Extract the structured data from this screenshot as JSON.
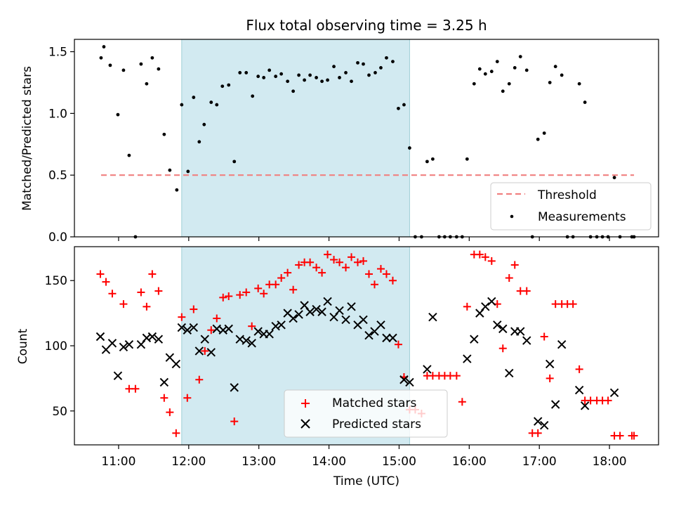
{
  "title": "Flux total observing time = 3.25 h",
  "colors": {
    "threshold": "#f08080",
    "matched": "#ff0000",
    "predicted": "#000000",
    "span": "#add8e6"
  },
  "x_ticks": [
    "11:00",
    "12:00",
    "13:00",
    "14:00",
    "15:00",
    "16:00",
    "17:00",
    "18:00"
  ],
  "chart_data": [
    {
      "type": "scatter",
      "panel": "top",
      "ylabel": "Matched/Predicted stars",
      "x_unit": "hours UTC",
      "xlim": [
        10.37,
        18.7
      ],
      "ylim": [
        0,
        1.6
      ],
      "y_ticks": [
        "0.0",
        "0.5",
        "1.0",
        "1.5"
      ],
      "highlight_span": [
        11.9,
        15.15
      ],
      "threshold": {
        "name": "Threshold",
        "value": 0.5,
        "x_range": [
          10.75,
          18.35
        ]
      },
      "series": [
        {
          "name": "Measurements",
          "x": [
            10.75,
            10.79,
            10.88,
            10.99,
            11.07,
            11.15,
            11.24,
            11.32,
            11.4,
            11.48,
            11.57,
            11.65,
            11.73,
            11.83,
            11.9,
            11.99,
            12.07,
            12.15,
            12.22,
            12.32,
            12.4,
            12.48,
            12.57,
            12.65,
            12.73,
            12.82,
            12.91,
            12.99,
            13.07,
            13.15,
            13.24,
            13.32,
            13.41,
            13.49,
            13.57,
            13.65,
            13.73,
            13.82,
            13.9,
            13.98,
            14.07,
            14.15,
            14.24,
            14.32,
            14.41,
            14.49,
            14.57,
            14.66,
            14.74,
            14.82,
            14.91,
            14.99,
            15.07,
            15.15,
            15.23,
            15.32,
            15.4,
            15.48,
            15.57,
            15.65,
            15.73,
            15.82,
            15.9,
            15.97,
            16.07,
            16.15,
            16.23,
            16.32,
            16.4,
            16.48,
            16.57,
            16.65,
            16.73,
            16.82,
            16.9,
            16.98,
            17.07,
            17.15,
            17.23,
            17.32,
            17.4,
            17.48,
            17.57,
            17.65,
            17.73,
            17.82,
            17.9,
            17.98,
            18.07,
            18.15,
            18.32,
            18.35
          ],
          "y": [
            1.45,
            1.54,
            1.39,
            0.99,
            1.35,
            0.66,
            0.0,
            1.4,
            1.24,
            1.45,
            1.36,
            0.83,
            0.54,
            0.38,
            1.07,
            0.53,
            1.13,
            0.77,
            0.91,
            1.09,
            1.07,
            1.22,
            1.23,
            0.61,
            1.33,
            1.33,
            1.14,
            1.3,
            1.29,
            1.35,
            1.3,
            1.32,
            1.26,
            1.18,
            1.31,
            1.27,
            1.31,
            1.29,
            1.26,
            1.27,
            1.38,
            1.29,
            1.33,
            1.26,
            1.41,
            1.4,
            1.31,
            1.33,
            1.37,
            1.45,
            1.42,
            1.04,
            1.07,
            0.72,
            0.0,
            0.0,
            0.61,
            0.63,
            0.0,
            0.0,
            0.0,
            0.0,
            0.0,
            0.63,
            1.24,
            1.36,
            1.32,
            1.34,
            1.42,
            1.18,
            1.24,
            1.37,
            1.46,
            1.35,
            0.0,
            0.79,
            0.84,
            1.25,
            1.38,
            1.31,
            0.0,
            0.0,
            1.24,
            1.09,
            0.0,
            0.0,
            0.0,
            0.0,
            0.48,
            0.0,
            0.0,
            0.0
          ]
        }
      ],
      "legend": {
        "position": "lower right",
        "entries": [
          "Threshold",
          "Measurements"
        ]
      }
    },
    {
      "type": "scatter",
      "panel": "bottom",
      "xlabel": "Time (UTC)",
      "ylabel": "Count",
      "x_unit": "hours UTC",
      "xlim": [
        10.37,
        18.7
      ],
      "ylim": [
        24,
        176
      ],
      "y_ticks": [
        "50",
        "100",
        "150"
      ],
      "highlight_span": [
        11.9,
        15.15
      ],
      "series": [
        {
          "name": "Matched stars",
          "marker": "plus",
          "x": [
            10.74,
            10.82,
            10.91,
            11.07,
            11.15,
            11.24,
            11.32,
            11.4,
            11.48,
            11.57,
            11.65,
            11.73,
            11.82,
            11.9,
            11.98,
            12.07,
            12.15,
            12.23,
            12.32,
            12.4,
            12.49,
            12.57,
            12.65,
            12.73,
            12.82,
            12.9,
            12.99,
            13.07,
            13.15,
            13.24,
            13.32,
            13.41,
            13.49,
            13.57,
            13.65,
            13.73,
            13.82,
            13.9,
            13.98,
            14.07,
            14.15,
            14.24,
            14.32,
            14.41,
            14.49,
            14.57,
            14.65,
            14.74,
            14.82,
            14.91,
            14.99,
            15.07,
            15.15,
            15.23,
            15.32,
            15.4,
            15.48,
            15.57,
            15.65,
            15.73,
            15.82,
            15.9,
            15.97,
            16.07,
            16.15,
            16.23,
            16.32,
            16.4,
            16.48,
            16.57,
            16.65,
            16.73,
            16.82,
            16.9,
            16.98,
            17.07,
            17.15,
            17.23,
            17.32,
            17.4,
            17.48,
            17.57,
            17.65,
            17.73,
            17.82,
            17.9,
            17.98,
            18.07,
            18.15,
            18.32,
            18.35
          ],
          "y": [
            155,
            149,
            140,
            132,
            67,
            67,
            141,
            130,
            155,
            142,
            60,
            49,
            33,
            122,
            60,
            128,
            74,
            96,
            112,
            121,
            137,
            138,
            42,
            139,
            141,
            115,
            144,
            140,
            147,
            147,
            152,
            156,
            143,
            162,
            164,
            164,
            160,
            156,
            170,
            166,
            164,
            160,
            168,
            164,
            165,
            155,
            147,
            159,
            155,
            150,
            101,
            76,
            51,
            51,
            48,
            77,
            77,
            77,
            77,
            77,
            77,
            57,
            130,
            170,
            170,
            168,
            165,
            132,
            98,
            152,
            162,
            142,
            142,
            33,
            33,
            107,
            75,
            132,
            132,
            132,
            132,
            82,
            58,
            58,
            58,
            58,
            58,
            31,
            31,
            31,
            31
          ]
        },
        {
          "name": "Predicted stars",
          "marker": "x",
          "x": [
            10.74,
            10.82,
            10.91,
            10.99,
            11.07,
            11.15,
            11.32,
            11.4,
            11.48,
            11.57,
            11.65,
            11.73,
            11.82,
            11.9,
            11.98,
            12.07,
            12.15,
            12.23,
            12.32,
            12.4,
            12.49,
            12.57,
            12.65,
            12.73,
            12.82,
            12.9,
            12.99,
            13.07,
            13.15,
            13.24,
            13.32,
            13.41,
            13.49,
            13.57,
            13.65,
            13.73,
            13.82,
            13.9,
            13.98,
            14.07,
            14.15,
            14.24,
            14.32,
            14.41,
            14.49,
            14.57,
            14.65,
            14.74,
            14.82,
            14.91,
            15.07,
            15.15,
            15.4,
            15.48,
            15.97,
            16.07,
            16.15,
            16.23,
            16.32,
            16.4,
            16.48,
            16.57,
            16.65,
            16.73,
            16.82,
            16.98,
            17.07,
            17.15,
            17.23,
            17.32,
            17.57,
            17.65,
            18.07
          ],
          "y": [
            107,
            97,
            102,
            77,
            99,
            101,
            101,
            106,
            107,
            105,
            72,
            91,
            86,
            114,
            112,
            114,
            96,
            105,
            95,
            113,
            112,
            113,
            68,
            105,
            104,
            102,
            111,
            109,
            109,
            115,
            116,
            125,
            121,
            124,
            131,
            126,
            128,
            126,
            134,
            122,
            127,
            120,
            130,
            116,
            120,
            108,
            111,
            116,
            106,
            106,
            74,
            72,
            82,
            122,
            90,
            105,
            125,
            130,
            134,
            116,
            113,
            79,
            111,
            111,
            104,
            42,
            39,
            86,
            55,
            101,
            66,
            54,
            64
          ]
        }
      ],
      "legend": {
        "position": "lower center",
        "entries": [
          "Matched stars",
          "Predicted stars"
        ]
      }
    }
  ]
}
